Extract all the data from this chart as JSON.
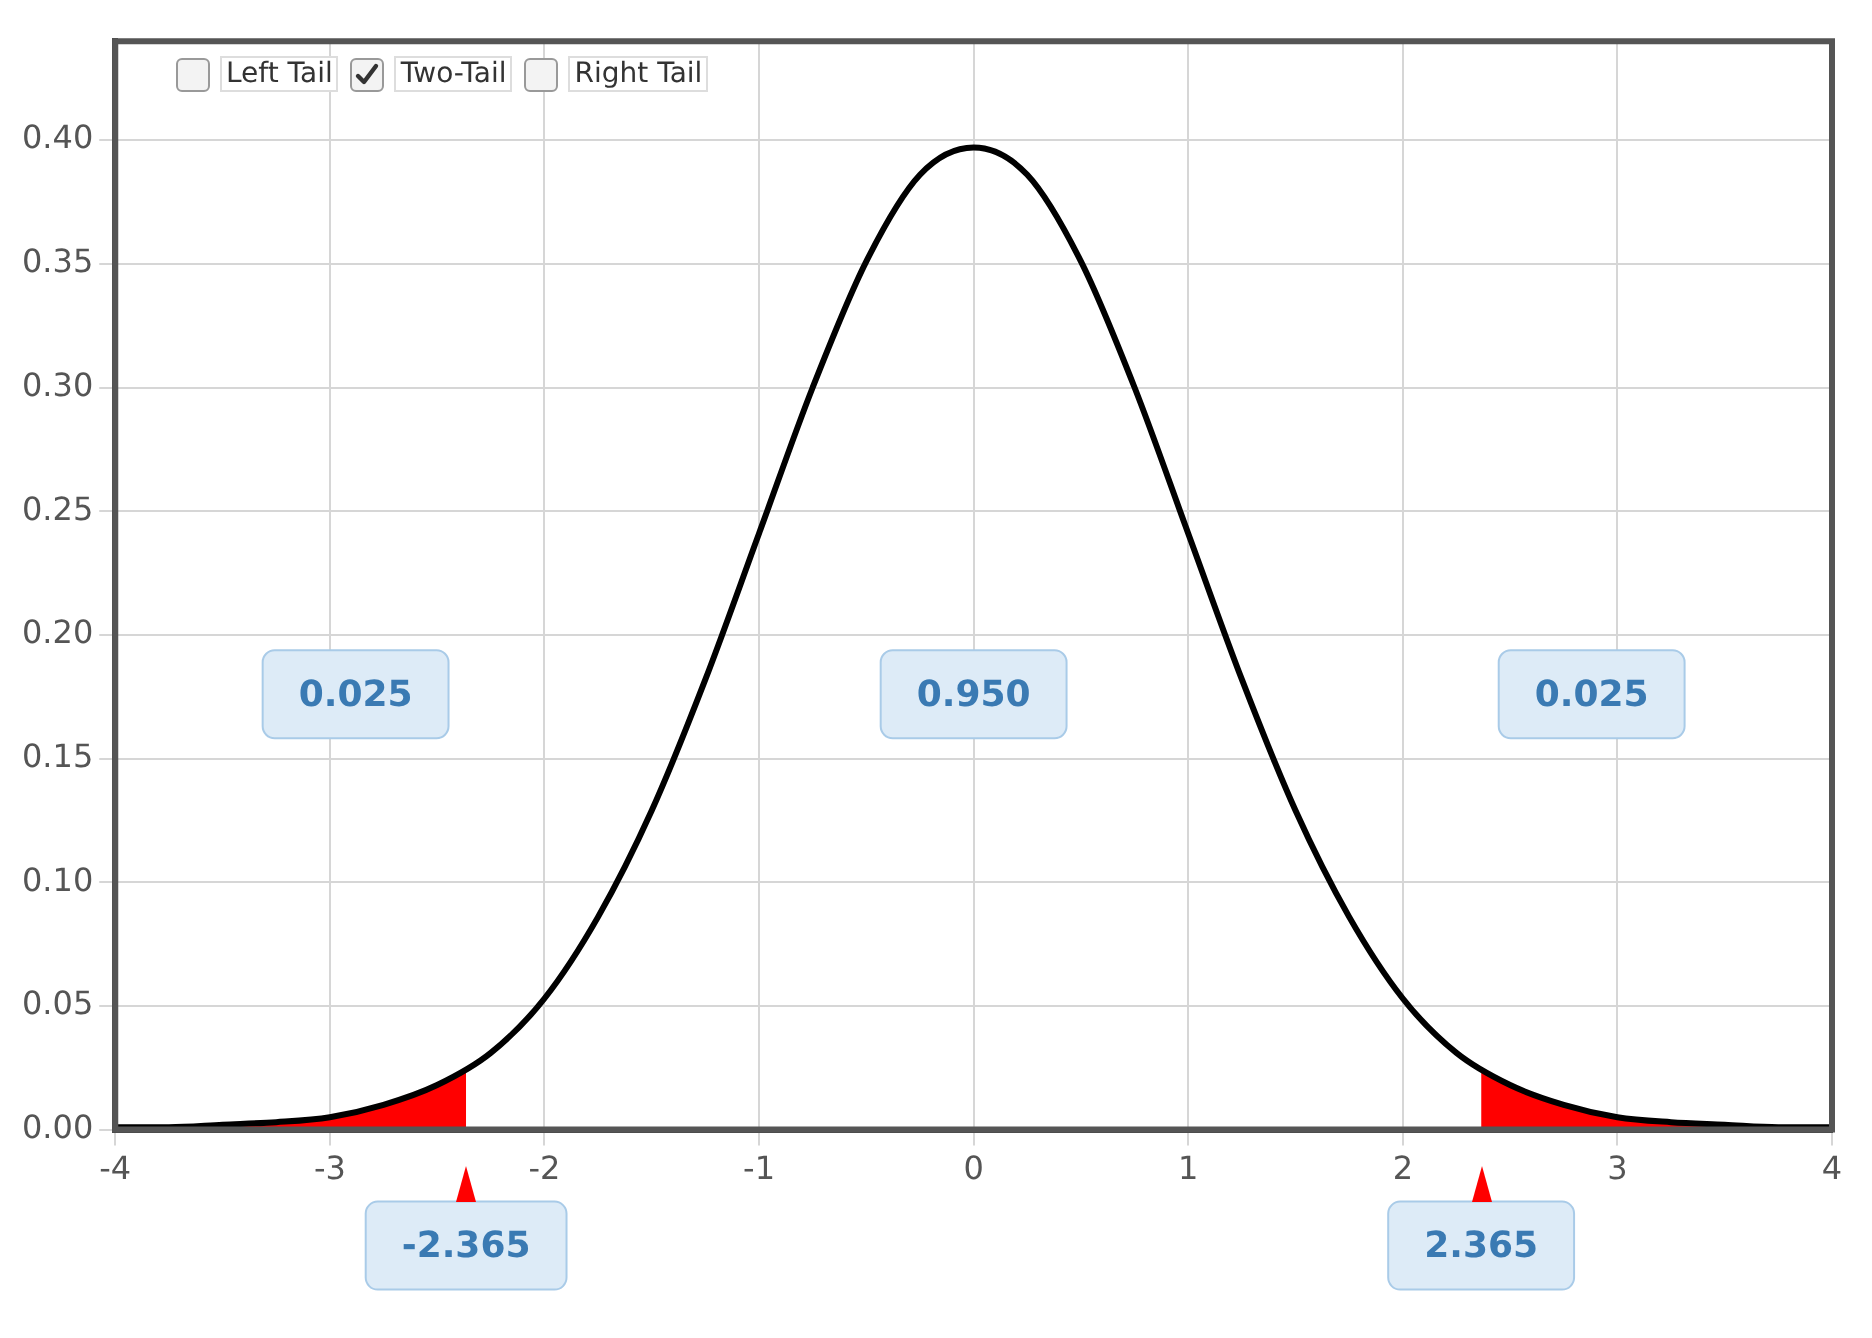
{
  "chart_data": {
    "type": "line",
    "xlim": [
      -4,
      4
    ],
    "xticks": [
      -4,
      -3,
      -2,
      -1,
      0,
      1,
      2,
      3,
      4
    ],
    "ylim": [
      0,
      0.44
    ],
    "yticks": [
      {
        "value": 0,
        "label": "0.00"
      },
      0.05,
      {
        "value": 0.1,
        "label": "0.10"
      },
      0.15,
      {
        "value": 0.2,
        "label": "0.20"
      },
      0.25,
      {
        "value": 0.3,
        "label": "0.30"
      },
      0.35,
      {
        "value": 0.4,
        "label": "0.40"
      }
    ],
    "grid": true,
    "legend": false,
    "marker": "none",
    "series": [
      {
        "color": "#000000",
        "x": [
          -4,
          -3.75,
          -3.5,
          -3.25,
          -3,
          -2.75,
          -2.5,
          -2.25,
          -2,
          -1.75,
          -1.5,
          -1.25,
          -1,
          -0.75,
          -0.5,
          -0.25,
          0,
          0.25,
          0.5,
          0.75,
          1,
          1.25,
          1.5,
          1.75,
          2,
          2.25,
          2.5,
          2.75,
          3,
          3.25,
          3.5,
          3.75,
          4
        ],
        "values": [
          0.001,
          0.001,
          0.002,
          0.003,
          0.005,
          0.01,
          0.018,
          0.031,
          0.053,
          0.086,
          0.129,
          0.182,
          0.241,
          0.3,
          0.351,
          0.386,
          0.397,
          0.386,
          0.351,
          0.3,
          0.241,
          0.182,
          0.129,
          0.086,
          0.053,
          0.031,
          0.018,
          0.01,
          0.005,
          0.003,
          0.002,
          0.001,
          0.001
        ]
      },
      {
        "type": "area",
        "color": "#ff0000",
        "x": [
          -4,
          -3.75,
          -3.5,
          -3.25,
          -3,
          -2.75,
          -2.5,
          -2.365
        ],
        "values": [
          0.001,
          0.001,
          0.002,
          0.003,
          0.005,
          0.01,
          0.018,
          0.024
        ]
      },
      {
        "type": "area",
        "color": "#ff0000",
        "x": [
          2.365,
          2.5,
          2.75,
          3,
          3.25,
          3.5,
          3.75,
          4
        ],
        "values": [
          0.024,
          0.018,
          0.01,
          0.005,
          0.003,
          0.002,
          0.001,
          0.001
        ]
      }
    ],
    "annotations": [
      "Left Tail",
      "Two-Tail",
      "Right Tail",
      "0.025",
      "0.950",
      "0.025",
      {
        "text": "-2.365",
        "x": -2.365,
        "y": 0
      },
      {
        "text": "2.365",
        "x": 2.365,
        "y": 0
      }
    ]
  }
}
